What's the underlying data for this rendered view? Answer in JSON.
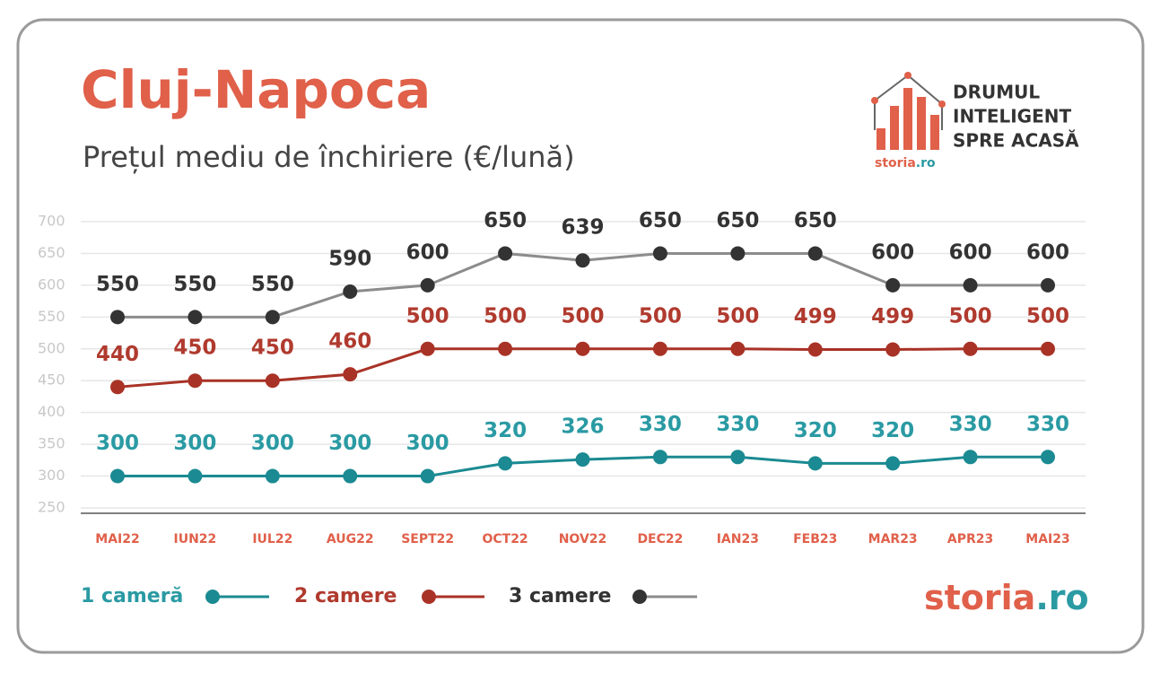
{
  "chart_data": {
    "type": "line",
    "title": "Cluj-Napoca",
    "subtitle": "Prețul mediu de închiriere (€/lună)",
    "categories": [
      "MAI22",
      "IUN22",
      "IUL22",
      "AUG22",
      "SEPT22",
      "OCT22",
      "NOV22",
      "DEC22",
      "IAN23",
      "FEB23",
      "MAR23",
      "APR23",
      "MAI23"
    ],
    "series": [
      {
        "name": "1 cameră",
        "color": "#1b8a92",
        "label_color": "#2a9aa3",
        "dot_color": "#1b8a92",
        "values": [
          300,
          300,
          300,
          300,
          300,
          320,
          326,
          330,
          330,
          320,
          320,
          330,
          330
        ]
      },
      {
        "name": "2 camere",
        "color": "#a93226",
        "label_color": "#b03a2e",
        "dot_color": "#a93226",
        "values": [
          440,
          450,
          450,
          460,
          500,
          500,
          500,
          500,
          500,
          499,
          499,
          500,
          500
        ]
      },
      {
        "name": "3 camere",
        "color": "#8c8c8c",
        "label_color": "#333333",
        "dot_color": "#333333",
        "values": [
          550,
          550,
          550,
          590,
          600,
          650,
          639,
          650,
          650,
          650,
          600,
          600,
          600
        ]
      }
    ],
    "ylim": [
      250,
      700
    ],
    "yticks": [
      250,
      300,
      350,
      400,
      450,
      500,
      550,
      600,
      650,
      700
    ],
    "grid": true
  },
  "logo": {
    "tagline": [
      "DRUMUL",
      "INTELIGENT",
      "SPRE ACASĂ"
    ],
    "brand": "storia",
    "domain": ".ro"
  },
  "footer": {
    "brand": "storia",
    "domain": ".ro"
  }
}
